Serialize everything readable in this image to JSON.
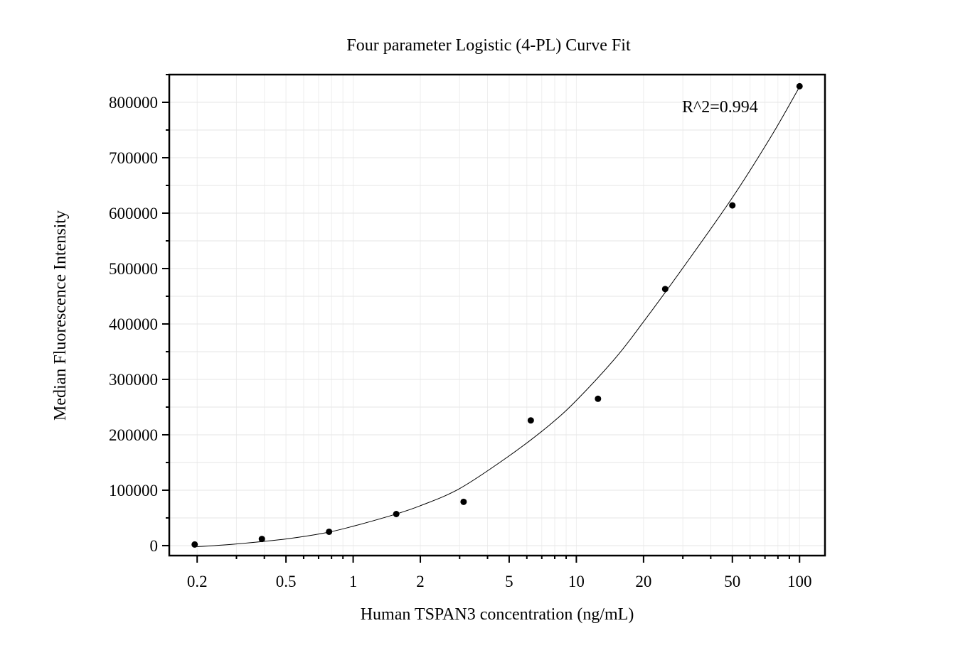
{
  "chart_data": {
    "type": "scatter",
    "title": "Four parameter Logistic (4-PL) Curve Fit",
    "xlabel": "Human TSPAN3 concentration (ng/mL)",
    "ylabel": "Median Fluorescence Intensity",
    "x_scale": "log",
    "xlim": [
      0.15,
      130
    ],
    "ylim": [
      -18000,
      850000
    ],
    "x_ticks": [
      0.2,
      0.5,
      1,
      2,
      5,
      10,
      20,
      50,
      100
    ],
    "x_tick_labels": [
      "0.2",
      "0.5",
      "1",
      "2",
      "5",
      "10",
      "20",
      "50",
      "100"
    ],
    "y_ticks": [
      0,
      100000,
      200000,
      300000,
      400000,
      500000,
      600000,
      700000,
      800000
    ],
    "y_tick_labels": [
      "0",
      "100000",
      "200000",
      "300000",
      "400000",
      "500000",
      "600000",
      "700000",
      "800000"
    ],
    "grid": true,
    "annotation": "R^2=0.994",
    "series": [
      {
        "type": "scatter",
        "x": [
          0.195,
          0.39,
          0.78,
          1.56,
          3.125,
          6.25,
          12.5,
          25,
          50,
          100
        ],
        "y": [
          2000,
          12000,
          25000,
          57000,
          79000,
          226000,
          265000,
          463000,
          614000,
          829000
        ]
      },
      {
        "type": "line",
        "x": [
          0.2,
          0.3,
          0.5,
          0.75,
          1,
          1.5,
          2,
          3,
          5,
          7.5,
          10,
          15,
          20,
          30,
          50,
          75,
          100
        ],
        "y": [
          -2000,
          3000,
          12000,
          23000,
          35000,
          55000,
          72000,
          103000,
          162000,
          216000,
          262000,
          339000,
          404000,
          501000,
          628000,
          740000,
          828000
        ]
      }
    ]
  }
}
